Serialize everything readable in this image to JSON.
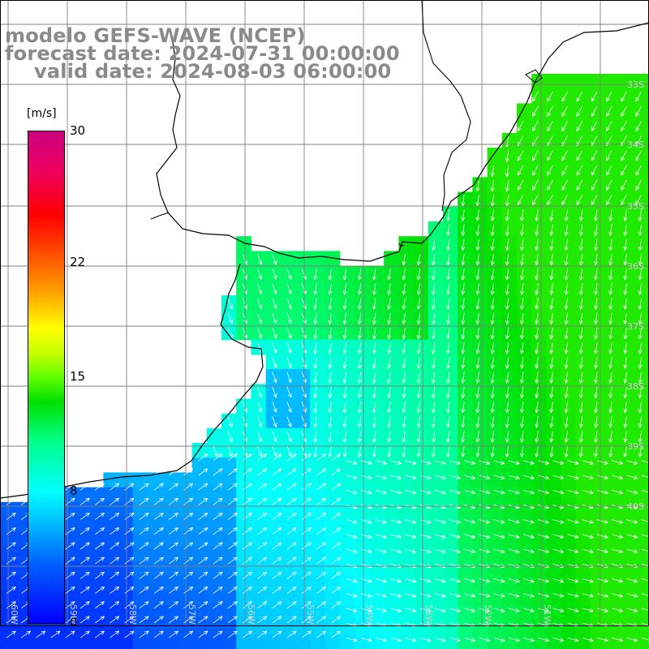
{
  "title": {
    "line1": "modelo GEFS-WAVE (NCEP)",
    "line2": "forecast date: 2024-07-31 00:00:00",
    "line3": "valid date: 2024-08-03 06:00:00"
  },
  "colorbar": {
    "unit": "[m/s]",
    "ticks": [
      {
        "label": "30",
        "value": 30
      },
      {
        "label": "22",
        "value": 22
      },
      {
        "label": "15",
        "value": 15
      },
      {
        "label": "8",
        "value": 8
      },
      {
        "label": "0",
        "value": 0
      }
    ],
    "colors": [
      "#0000ff",
      "#00b8ff",
      "#00ffff",
      "#00e000",
      "#ffff00",
      "#ff6000",
      "#ff0000",
      "#cc0080"
    ]
  },
  "map": {
    "variable": "wind speed",
    "lat_labels": [
      "33S",
      "34S",
      "35S",
      "36S",
      "37S",
      "38S",
      "39S",
      "40S"
    ],
    "lon_labels": [
      "60W",
      "59W",
      "58W",
      "57W",
      "56W",
      "55W",
      "54W",
      "53W",
      "52W",
      "51W"
    ],
    "land_color": "#ffffff",
    "grid_color": "#808080",
    "coast_color": "#000000",
    "arrow_color": "#ffffff"
  }
}
